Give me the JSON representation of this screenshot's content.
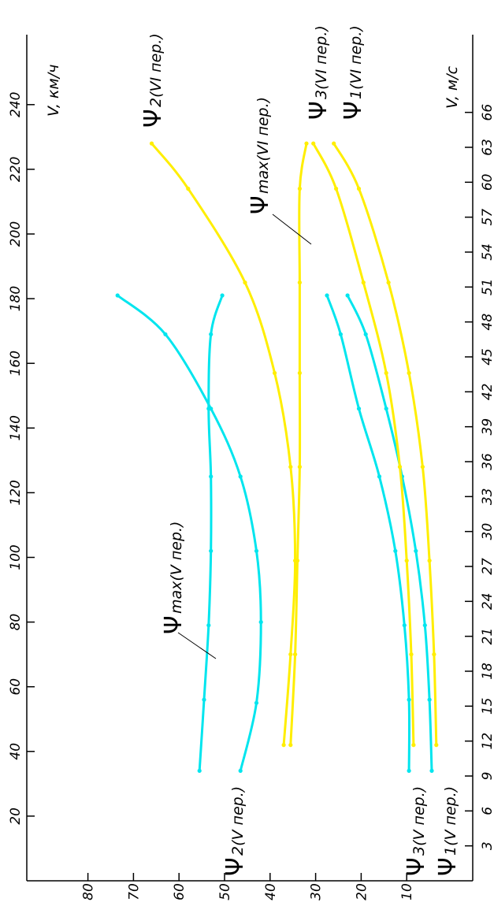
{
  "chart_data": {
    "type": "line",
    "x_axis": {
      "label_left": "V,  км/ч",
      "label_right": "V,  м/с",
      "range_kmh": [
        0,
        260
      ],
      "ticks_kmh": [
        20,
        40,
        60,
        80,
        100,
        120,
        140,
        160,
        180,
        200,
        220,
        240
      ],
      "ticks_ms": [
        3,
        6,
        9,
        12,
        15,
        18,
        21,
        24,
        27,
        30,
        33,
        36,
        39,
        42,
        45,
        48,
        51,
        54,
        57,
        60,
        63,
        66
      ]
    },
    "y_axis": {
      "range": [
        0,
        90
      ],
      "ticks": [
        10,
        20,
        30,
        40,
        50,
        60,
        70,
        80
      ]
    },
    "colors": {
      "gear_V": "#00e5ee",
      "gear_VI": "#ffee00",
      "axis": "#000000"
    },
    "series": [
      {
        "name": "Ψ2(V  пер.)",
        "gear": "V",
        "x": [
          34,
          55,
          80,
          102,
          125,
          146,
          169,
          181
        ],
        "y": [
          46.5,
          43,
          42,
          43,
          46.5,
          53,
          63,
          73.5
        ]
      },
      {
        "name": "Ψmax(V  пер.)",
        "gear": "V",
        "x": [
          34,
          56,
          79,
          102,
          125,
          146,
          169,
          181
        ],
        "y": [
          55.5,
          54.5,
          53.5,
          53,
          53,
          53.5,
          53,
          50.5
        ]
      },
      {
        "name": "Ψ3(V  пер.)",
        "gear": "V",
        "x": [
          34,
          56,
          79,
          102,
          125,
          146,
          169,
          181
        ],
        "y": [
          9.5,
          9.5,
          10.5,
          12.5,
          16,
          20.5,
          24.5,
          27.5
        ]
      },
      {
        "name": "Ψ1(V  пер.)",
        "gear": "V",
        "x": [
          34,
          56,
          79,
          102,
          125,
          146,
          169,
          181
        ],
        "y": [
          4.5,
          5,
          6,
          8,
          11,
          14.5,
          19,
          23
        ]
      },
      {
        "name": "Ψ2(VI  пер.)",
        "gear": "VI",
        "x": [
          42,
          70,
          99,
          128,
          157,
          185,
          214,
          228
        ],
        "y": [
          37,
          35.5,
          34.5,
          35.5,
          39,
          45.5,
          58,
          66
        ]
      },
      {
        "name": "Ψmax(VI  пер.)",
        "gear": "VI",
        "x": [
          42,
          70,
          99,
          128,
          157,
          185,
          214,
          228
        ],
        "y": [
          35.5,
          34.5,
          34,
          33.5,
          33.5,
          33.5,
          33.5,
          32
        ]
      },
      {
        "name": "Ψ3(VI  пер.)",
        "gear": "VI",
        "x": [
          42,
          70,
          99,
          128,
          157,
          185,
          214,
          228
        ],
        "y": [
          8.5,
          9,
          10,
          11.5,
          14.5,
          19.5,
          25.5,
          30.5
        ]
      },
      {
        "name": "Ψ1(VI  пер.)",
        "gear": "VI",
        "x": [
          42,
          70,
          99,
          128,
          157,
          185,
          214,
          228
        ],
        "y": [
          3.5,
          4,
          5,
          6.5,
          9.5,
          14,
          20.5,
          26
        ]
      }
    ],
    "annotations": {
      "psi2_V": {
        "symbol": "Ψ",
        "text": "2(V  пер.)"
      },
      "psimax_V": {
        "symbol": "Ψ",
        "text": "max(V  пер.)"
      },
      "psi3_V": {
        "symbol": "Ψ",
        "text": "3(V  пер.)"
      },
      "psi1_V": {
        "symbol": "Ψ",
        "text": "1(V  пер.)"
      },
      "psi2_VI": {
        "symbol": "Ψ",
        "text": "2(VI  пер.)"
      },
      "psimax_VI": {
        "symbol": "Ψ",
        "text": "max(VI  пер.)"
      },
      "psi3_VI": {
        "symbol": "Ψ",
        "text": "3(VI  пер.)"
      },
      "psi1_VI": {
        "symbol": "Ψ",
        "text": "1(VI  пер.)"
      }
    },
    "grid": false,
    "legend": "none (curves labelled directly)"
  }
}
